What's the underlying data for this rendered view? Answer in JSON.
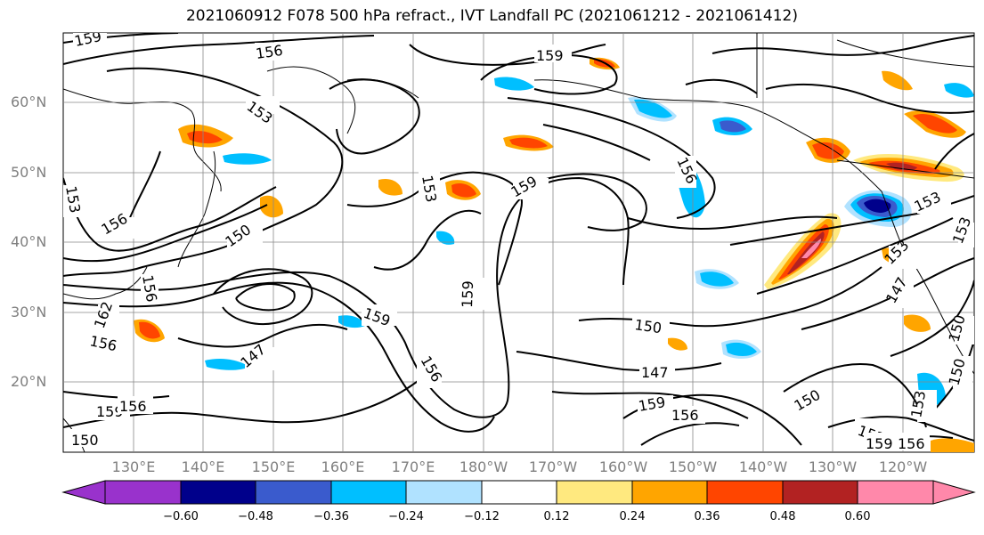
{
  "title": "2021060912 F078 500 hPa refract., IVT Landfall PC (2021061212 - 2021061412)",
  "lat_labels": [
    "60°N",
    "50°N",
    "40°N",
    "30°N",
    "20°N"
  ],
  "lon_labels": [
    "130°E",
    "140°E",
    "150°E",
    "160°E",
    "170°E",
    "180°W",
    "170°W",
    "160°W",
    "150°W",
    "140°W",
    "130°W",
    "120°W"
  ],
  "contour_labels": [
    "159",
    "156",
    "153",
    "159",
    "156",
    "153",
    "159",
    "156",
    "153",
    "150",
    "150",
    "159",
    "153",
    "156",
    "162",
    "156",
    "147",
    "159",
    "156",
    "150",
    "147",
    "159",
    "156",
    "150",
    "153",
    "147",
    "153",
    "150",
    "153",
    "153",
    "159",
    "156",
    "159",
    "156",
    "150"
  ],
  "colorbar": {
    "ticks": [
      "−0.60",
      "−0.48",
      "−0.36",
      "−0.24",
      "−0.12",
      "0.12",
      "0.24",
      "0.36",
      "0.48",
      "0.60"
    ],
    "colors": [
      "#9932cc",
      "#00008b",
      "#3a5bcd",
      "#00bfff",
      "#b0e2ff",
      "#ffffff",
      "#ffe97f",
      "#ffa500",
      "#ff4500",
      "#b22222",
      "#ff88aa"
    ]
  },
  "chart_data": {
    "type": "heatmap",
    "title": "2021060912 F078 500 hPa refract., IVT Landfall PC (2021061212 - 2021061412)",
    "projection": "PlateCarree",
    "lon_range": [
      120,
      250
    ],
    "lat_range": [
      10,
      70
    ],
    "contour_field": "500 hPa refractivity",
    "contour_levels_labeled": [
      147,
      150,
      153,
      156,
      159,
      162
    ],
    "shaded_field": "IVT Landfall PC",
    "shading_levels": [
      -0.6,
      -0.48,
      -0.36,
      -0.24,
      -0.12,
      0.12,
      0.24,
      0.36,
      0.48,
      0.6
    ],
    "grid": true
  }
}
